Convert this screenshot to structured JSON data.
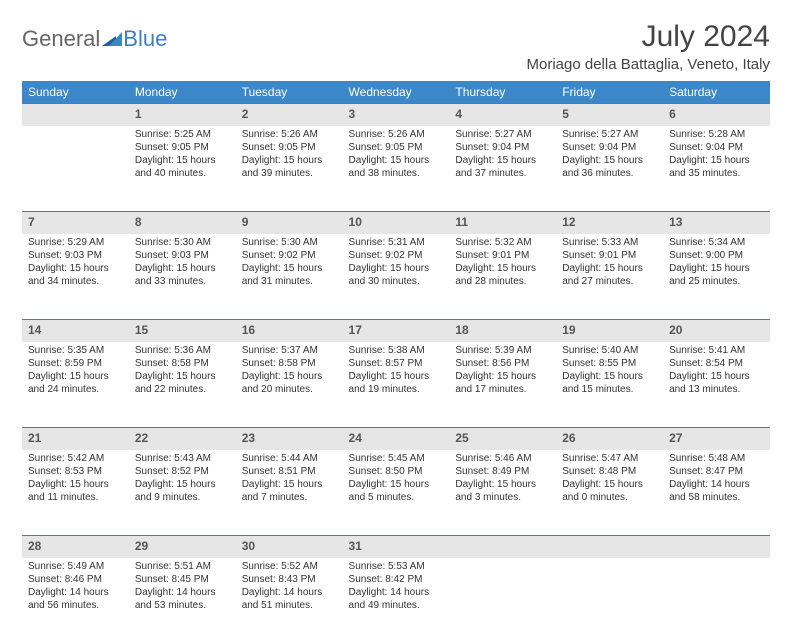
{
  "logo": {
    "part1": "General",
    "part2": "Blue"
  },
  "title": "July 2024",
  "location": "Moriago della Battaglia, Veneto, Italy",
  "header_bg": "#3b87c8",
  "daynum_bg": "#e6e6e6",
  "border_color": "#3b7fc4",
  "weekdays": [
    "Sunday",
    "Monday",
    "Tuesday",
    "Wednesday",
    "Thursday",
    "Friday",
    "Saturday"
  ],
  "weeks": [
    {
      "nums": [
        "",
        "1",
        "2",
        "3",
        "4",
        "5",
        "6"
      ],
      "cells": [
        {
          "sunrise": "",
          "sunset": "",
          "daylight1": "",
          "daylight2": ""
        },
        {
          "sunrise": "Sunrise: 5:25 AM",
          "sunset": "Sunset: 9:05 PM",
          "daylight1": "Daylight: 15 hours",
          "daylight2": "and 40 minutes."
        },
        {
          "sunrise": "Sunrise: 5:26 AM",
          "sunset": "Sunset: 9:05 PM",
          "daylight1": "Daylight: 15 hours",
          "daylight2": "and 39 minutes."
        },
        {
          "sunrise": "Sunrise: 5:26 AM",
          "sunset": "Sunset: 9:05 PM",
          "daylight1": "Daylight: 15 hours",
          "daylight2": "and 38 minutes."
        },
        {
          "sunrise": "Sunrise: 5:27 AM",
          "sunset": "Sunset: 9:04 PM",
          "daylight1": "Daylight: 15 hours",
          "daylight2": "and 37 minutes."
        },
        {
          "sunrise": "Sunrise: 5:27 AM",
          "sunset": "Sunset: 9:04 PM",
          "daylight1": "Daylight: 15 hours",
          "daylight2": "and 36 minutes."
        },
        {
          "sunrise": "Sunrise: 5:28 AM",
          "sunset": "Sunset: 9:04 PM",
          "daylight1": "Daylight: 15 hours",
          "daylight2": "and 35 minutes."
        }
      ]
    },
    {
      "nums": [
        "7",
        "8",
        "9",
        "10",
        "11",
        "12",
        "13"
      ],
      "cells": [
        {
          "sunrise": "Sunrise: 5:29 AM",
          "sunset": "Sunset: 9:03 PM",
          "daylight1": "Daylight: 15 hours",
          "daylight2": "and 34 minutes."
        },
        {
          "sunrise": "Sunrise: 5:30 AM",
          "sunset": "Sunset: 9:03 PM",
          "daylight1": "Daylight: 15 hours",
          "daylight2": "and 33 minutes."
        },
        {
          "sunrise": "Sunrise: 5:30 AM",
          "sunset": "Sunset: 9:02 PM",
          "daylight1": "Daylight: 15 hours",
          "daylight2": "and 31 minutes."
        },
        {
          "sunrise": "Sunrise: 5:31 AM",
          "sunset": "Sunset: 9:02 PM",
          "daylight1": "Daylight: 15 hours",
          "daylight2": "and 30 minutes."
        },
        {
          "sunrise": "Sunrise: 5:32 AM",
          "sunset": "Sunset: 9:01 PM",
          "daylight1": "Daylight: 15 hours",
          "daylight2": "and 28 minutes."
        },
        {
          "sunrise": "Sunrise: 5:33 AM",
          "sunset": "Sunset: 9:01 PM",
          "daylight1": "Daylight: 15 hours",
          "daylight2": "and 27 minutes."
        },
        {
          "sunrise": "Sunrise: 5:34 AM",
          "sunset": "Sunset: 9:00 PM",
          "daylight1": "Daylight: 15 hours",
          "daylight2": "and 25 minutes."
        }
      ]
    },
    {
      "nums": [
        "14",
        "15",
        "16",
        "17",
        "18",
        "19",
        "20"
      ],
      "cells": [
        {
          "sunrise": "Sunrise: 5:35 AM",
          "sunset": "Sunset: 8:59 PM",
          "daylight1": "Daylight: 15 hours",
          "daylight2": "and 24 minutes."
        },
        {
          "sunrise": "Sunrise: 5:36 AM",
          "sunset": "Sunset: 8:58 PM",
          "daylight1": "Daylight: 15 hours",
          "daylight2": "and 22 minutes."
        },
        {
          "sunrise": "Sunrise: 5:37 AM",
          "sunset": "Sunset: 8:58 PM",
          "daylight1": "Daylight: 15 hours",
          "daylight2": "and 20 minutes."
        },
        {
          "sunrise": "Sunrise: 5:38 AM",
          "sunset": "Sunset: 8:57 PM",
          "daylight1": "Daylight: 15 hours",
          "daylight2": "and 19 minutes."
        },
        {
          "sunrise": "Sunrise: 5:39 AM",
          "sunset": "Sunset: 8:56 PM",
          "daylight1": "Daylight: 15 hours",
          "daylight2": "and 17 minutes."
        },
        {
          "sunrise": "Sunrise: 5:40 AM",
          "sunset": "Sunset: 8:55 PM",
          "daylight1": "Daylight: 15 hours",
          "daylight2": "and 15 minutes."
        },
        {
          "sunrise": "Sunrise: 5:41 AM",
          "sunset": "Sunset: 8:54 PM",
          "daylight1": "Daylight: 15 hours",
          "daylight2": "and 13 minutes."
        }
      ]
    },
    {
      "nums": [
        "21",
        "22",
        "23",
        "24",
        "25",
        "26",
        "27"
      ],
      "cells": [
        {
          "sunrise": "Sunrise: 5:42 AM",
          "sunset": "Sunset: 8:53 PM",
          "daylight1": "Daylight: 15 hours",
          "daylight2": "and 11 minutes."
        },
        {
          "sunrise": "Sunrise: 5:43 AM",
          "sunset": "Sunset: 8:52 PM",
          "daylight1": "Daylight: 15 hours",
          "daylight2": "and 9 minutes."
        },
        {
          "sunrise": "Sunrise: 5:44 AM",
          "sunset": "Sunset: 8:51 PM",
          "daylight1": "Daylight: 15 hours",
          "daylight2": "and 7 minutes."
        },
        {
          "sunrise": "Sunrise: 5:45 AM",
          "sunset": "Sunset: 8:50 PM",
          "daylight1": "Daylight: 15 hours",
          "daylight2": "and 5 minutes."
        },
        {
          "sunrise": "Sunrise: 5:46 AM",
          "sunset": "Sunset: 8:49 PM",
          "daylight1": "Daylight: 15 hours",
          "daylight2": "and 3 minutes."
        },
        {
          "sunrise": "Sunrise: 5:47 AM",
          "sunset": "Sunset: 8:48 PM",
          "daylight1": "Daylight: 15 hours",
          "daylight2": "and 0 minutes."
        },
        {
          "sunrise": "Sunrise: 5:48 AM",
          "sunset": "Sunset: 8:47 PM",
          "daylight1": "Daylight: 14 hours",
          "daylight2": "and 58 minutes."
        }
      ]
    },
    {
      "nums": [
        "28",
        "29",
        "30",
        "31",
        "",
        "",
        ""
      ],
      "cells": [
        {
          "sunrise": "Sunrise: 5:49 AM",
          "sunset": "Sunset: 8:46 PM",
          "daylight1": "Daylight: 14 hours",
          "daylight2": "and 56 minutes."
        },
        {
          "sunrise": "Sunrise: 5:51 AM",
          "sunset": "Sunset: 8:45 PM",
          "daylight1": "Daylight: 14 hours",
          "daylight2": "and 53 minutes."
        },
        {
          "sunrise": "Sunrise: 5:52 AM",
          "sunset": "Sunset: 8:43 PM",
          "daylight1": "Daylight: 14 hours",
          "daylight2": "and 51 minutes."
        },
        {
          "sunrise": "Sunrise: 5:53 AM",
          "sunset": "Sunset: 8:42 PM",
          "daylight1": "Daylight: 14 hours",
          "daylight2": "and 49 minutes."
        },
        {
          "sunrise": "",
          "sunset": "",
          "daylight1": "",
          "daylight2": ""
        },
        {
          "sunrise": "",
          "sunset": "",
          "daylight1": "",
          "daylight2": ""
        },
        {
          "sunrise": "",
          "sunset": "",
          "daylight1": "",
          "daylight2": ""
        }
      ]
    }
  ]
}
